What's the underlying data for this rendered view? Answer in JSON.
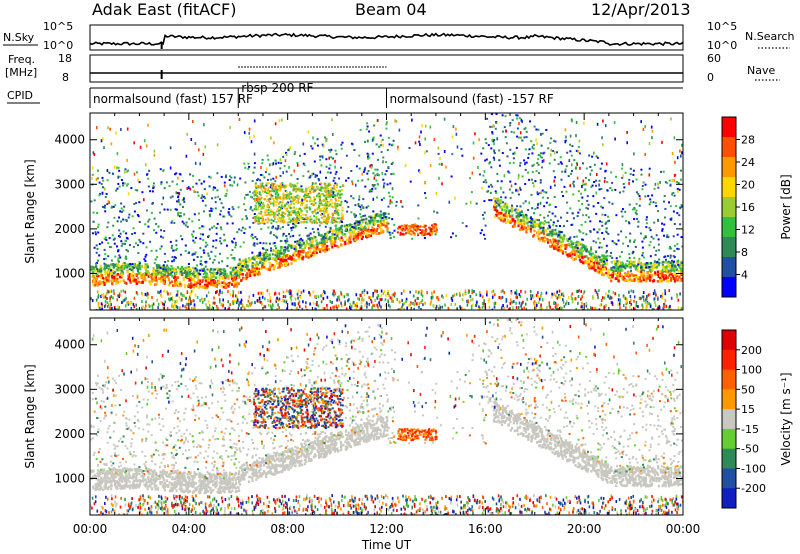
{
  "header": {
    "station": "Adak East (fitACF)",
    "beam": "Beam 04",
    "date": "12/Apr/2013"
  },
  "side_labels": {
    "nsky": "N.Sky",
    "nsearch": "N.Search",
    "freq": "Freq.",
    "freq_unit": "[MHz]",
    "nave": "Nave",
    "cpid": "CPID"
  },
  "small_ticks": {
    "noise_left": [
      "10^5",
      "10^0"
    ],
    "noise_right": [
      "10^5",
      "10^0"
    ],
    "freq_left": [
      "18",
      "8"
    ],
    "nave_right": [
      "60",
      "0"
    ]
  },
  "cpid_modes": [
    {
      "label": "normalsound (fast) 157 RF",
      "start": 0.0,
      "end": 6.0
    },
    {
      "label": "rbsp 200 RF",
      "start": 6.0,
      "end": 12.0
    },
    {
      "label": "normalsound (fast) -157 RF",
      "start": 12.0,
      "end": 24.0
    }
  ],
  "chart_data": [
    {
      "type": "heatmap",
      "quantity": "power",
      "ylabel": "Slant Range [km]",
      "ylim": [
        180,
        4600
      ],
      "yticks": [
        "1000",
        "2000",
        "3000",
        "4000"
      ],
      "colorbar_label": "Power [dB]",
      "colorbar_ticks": [
        "28",
        "24",
        "20",
        "16",
        "12",
        "8",
        "4"
      ],
      "colors": [
        "#0000ff",
        "#2050a0",
        "#2e8b57",
        "#33c040",
        "#9acd32",
        "#ffd700",
        "#ff9900",
        "#ff5000",
        "#ff0000"
      ]
    },
    {
      "type": "heatmap",
      "quantity": "velocity",
      "ylabel": "Slant Range [km]",
      "ylim": [
        180,
        4600
      ],
      "yticks": [
        "1000",
        "2000",
        "3000",
        "4000"
      ],
      "colorbar_label": "Velocity [m s⁻¹]",
      "colorbar_ticks": [
        "200",
        "100",
        "50",
        "15",
        "-15",
        "-50",
        "-100",
        "-200"
      ],
      "colors": [
        "#1020c0",
        "#2050a0",
        "#2e8b57",
        "#66cc33",
        "#c8c8c0",
        "#ff9900",
        "#ff6000",
        "#ff2000",
        "#e00000"
      ],
      "xlabel": "Time UT",
      "xticks": [
        "00:00",
        "04:00",
        "08:00",
        "12:00",
        "16:00",
        "20:00",
        "00:00"
      ],
      "xlim": [
        0,
        24
      ]
    }
  ]
}
